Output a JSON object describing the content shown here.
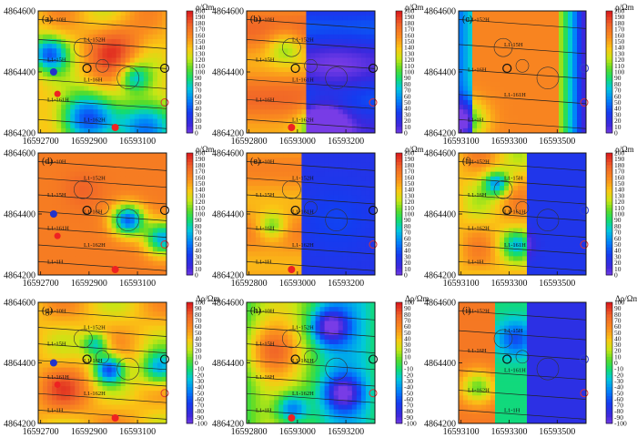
{
  "chart_data": {
    "type": "heatmap",
    "figure": "3x3 grid of resistivity contour maps",
    "colorbars": {
      "rho": {
        "title": "ρ/Ωm",
        "ticks": [
          "200",
          "190",
          "180",
          "170",
          "160",
          "150",
          "140",
          "130",
          "120",
          "110",
          "100",
          "90",
          "80",
          "70",
          "60",
          "50",
          "40",
          "30",
          "20",
          "10",
          "0"
        ],
        "range": [
          0,
          200
        ]
      },
      "delta": {
        "title": "Δρ/Ωm",
        "ticks": [
          "100",
          "90",
          "80",
          "70",
          "60",
          "50",
          "40",
          "30",
          "20",
          "10",
          "0",
          "-10",
          "-20",
          "-30",
          "-40",
          "-50",
          "-60",
          "-70",
          "-80",
          "-90",
          "-100"
        ],
        "range": [
          -100,
          100
        ]
      }
    },
    "panels": [
      {
        "label": "(a)",
        "cbar": "rho",
        "xticks": [
          "16592700",
          "16592900",
          "16593100"
        ],
        "yticks": [
          "4864600",
          "4864400",
          "4864200"
        ],
        "lines": [
          "L1-10H",
          "L1-152H",
          "L1-15H",
          "L1-16H",
          "L1-161H",
          "L1-162H"
        ],
        "high": [
          "(x:0.35,y:0.3)",
          "(x:0.7,y:0.2)"
        ],
        "low": [
          "(x:0.15,y:0.55)"
        ]
      },
      {
        "label": "(b)",
        "cbar": "rho",
        "xticks": [
          "16592800",
          "16593000",
          "16593200"
        ],
        "yticks": [
          "4864600",
          "4864400",
          "4864200"
        ],
        "lines": [
          "L1-10H",
          "L1-152H",
          "L1-15H",
          "L1-161H",
          "L1-16H",
          "L1-162H"
        ]
      },
      {
        "label": "(c)",
        "cbar": "rho",
        "xticks": [
          "16593100",
          "16593300",
          "16593500"
        ],
        "yticks": [
          "4864600",
          "4864400",
          "4864200"
        ],
        "lines": [
          "L1-152H",
          "L1-15H",
          "L1-16H",
          "L1-161H",
          "L1-1H"
        ]
      },
      {
        "label": "(d)",
        "cbar": "rho",
        "xticks": [
          "16592700",
          "16592900",
          "16593100"
        ],
        "yticks": [
          "4864600",
          "4864400",
          "4864200"
        ],
        "lines": [
          "L1-10H",
          "L1-152H",
          "L1-15H",
          "L1-16H",
          "L1-161H",
          "L1-162H",
          "L1-1H"
        ]
      },
      {
        "label": "(e)",
        "cbar": "rho",
        "xticks": [
          "16592800",
          "16593000",
          "16593200"
        ],
        "yticks": [
          "4864600",
          "4864400",
          "4864200"
        ],
        "lines": [
          "L1-10H",
          "L1-152H",
          "L1-15H",
          "L1-161H",
          "L1-16H",
          "L1-162H",
          "L1-1H"
        ]
      },
      {
        "label": "(f)",
        "cbar": "rho",
        "xticks": [
          "16593100",
          "16593300",
          "16593500"
        ],
        "yticks": [
          "4864600",
          "4864400",
          "4864200"
        ],
        "lines": [
          "L1-152H",
          "L1-15H",
          "L1-16H",
          "L1-161H",
          "L1-162H",
          "L1-161H",
          "L1-1H"
        ]
      },
      {
        "label": "(g)",
        "cbar": "delta",
        "xticks": [
          "16592700",
          "16592900",
          "16593100"
        ],
        "yticks": [
          "4864600",
          "4864400",
          "4864200"
        ],
        "lines": [
          "L1-10H",
          "L1-152H",
          "L1-15H",
          "L1-16H",
          "L1-161H",
          "L1-162H",
          "L1-1H"
        ]
      },
      {
        "label": "(h)",
        "cbar": "delta",
        "xticks": [
          "16592800",
          "16593000",
          "16593200"
        ],
        "yticks": [
          "4864600",
          "4864400",
          "4864200"
        ],
        "lines": [
          "L1-10H",
          "L1-152H",
          "L1-15H",
          "L1-161H",
          "L1-16H",
          "L1-162H",
          "L1-1H"
        ]
      },
      {
        "label": "(i)",
        "cbar": "delta",
        "xticks": [
          "16593100",
          "16593300",
          "16593500"
        ],
        "yticks": [
          "4864600",
          "4864400",
          "4864200"
        ],
        "lines": [
          "L1-152H",
          "L1-15H",
          "L1-16H",
          "L1-161H",
          "L1-162H",
          "L1-1H"
        ]
      }
    ]
  }
}
